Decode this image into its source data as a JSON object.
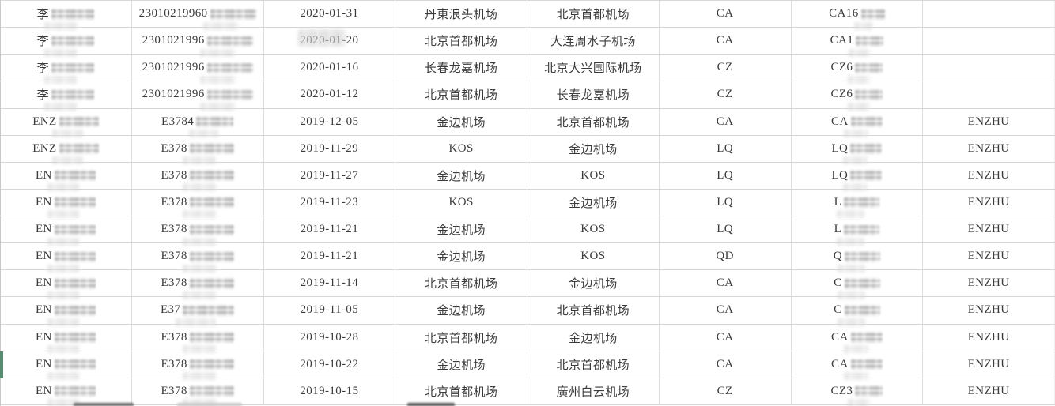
{
  "app": {
    "description_label": "flight-records-spreadsheet"
  },
  "colors": {
    "text": "#3b3b3b",
    "grid_line_horizontal": "#d6d6d6",
    "grid_line_vertical": "#dddddd",
    "row_marker_green": "#578c70",
    "background": "#ffffff"
  },
  "table": {
    "column_keys": [
      "name",
      "id",
      "date",
      "from",
      "to",
      "airline",
      "flight",
      "tag"
    ],
    "selected_row_index": 14,
    "partial_row_visible_at_bottom": true,
    "rows": [
      {
        "name": "李",
        "name_redacted": true,
        "id": "23010219960",
        "id_redacted": true,
        "date": "2020-01-31",
        "from": "丹東浪头机场",
        "to": "北京首都机场",
        "airline": "CA",
        "flight": "CA16",
        "flight_redacted": true,
        "tag": ""
      },
      {
        "name": "李",
        "name_redacted": true,
        "id": "2301021996",
        "id_redacted": true,
        "date": "2020-01-20",
        "from": "北京首都机场",
        "to": "大连周水子机场",
        "airline": "CA",
        "flight": "CA1",
        "flight_redacted": true,
        "tag": ""
      },
      {
        "name": "李",
        "name_redacted": true,
        "id": "2301021996",
        "id_redacted": true,
        "date": "2020-01-16",
        "from": "长春龙嘉机场",
        "to": "北京大兴国际机场",
        "airline": "CZ",
        "flight": "CZ6",
        "flight_redacted": true,
        "tag": ""
      },
      {
        "name": "李",
        "name_redacted": true,
        "id": "2301021996",
        "id_redacted": true,
        "date": "2020-01-12",
        "from": "北京首都机场",
        "to": "长春龙嘉机场",
        "airline": "CZ",
        "flight": "CZ6",
        "flight_redacted": true,
        "tag": ""
      },
      {
        "name": "ENZ",
        "name_redacted": true,
        "id": "E3784",
        "id_redacted": true,
        "date": "2019-12-05",
        "from": "金边机场",
        "to": "北京首都机场",
        "airline": "CA",
        "flight": "CA",
        "flight_redacted": true,
        "tag": "ENZHU"
      },
      {
        "name": "ENZ",
        "name_redacted": true,
        "id": "E378",
        "id_redacted": true,
        "date": "2019-11-29",
        "from": "KOS",
        "to": "金边机场",
        "airline": "LQ",
        "flight": "LQ",
        "flight_redacted": true,
        "tag": "ENZHU"
      },
      {
        "name": "EN",
        "name_redacted": true,
        "id": "E378",
        "id_redacted": true,
        "date": "2019-11-27",
        "from": "金边机场",
        "to": "KOS",
        "airline": "LQ",
        "flight": "LQ",
        "flight_redacted": true,
        "tag": "ENZHU"
      },
      {
        "name": "EN",
        "name_redacted": true,
        "id": "E378",
        "id_redacted": true,
        "date": "2019-11-23",
        "from": "KOS",
        "to": "金边机场",
        "airline": "LQ",
        "flight": "L",
        "flight_redacted": true,
        "tag": "ENZHU"
      },
      {
        "name": "EN",
        "name_redacted": true,
        "id": "E378",
        "id_redacted": true,
        "date": "2019-11-21",
        "from": "金边机场",
        "to": "KOS",
        "airline": "LQ",
        "flight": "L",
        "flight_redacted": true,
        "tag": "ENZHU"
      },
      {
        "name": "EN",
        "name_redacted": true,
        "id": "E378",
        "id_redacted": true,
        "date": "2019-11-21",
        "from": "金边机场",
        "to": "KOS",
        "airline": "QD",
        "flight": "Q",
        "flight_redacted": true,
        "tag": "ENZHU"
      },
      {
        "name": "EN",
        "name_redacted": true,
        "id": "E378",
        "id_redacted": true,
        "date": "2019-11-14",
        "from": "北京首都机场",
        "to": "金边机场",
        "airline": "CA",
        "flight": "C",
        "flight_redacted": true,
        "tag": "ENZHU"
      },
      {
        "name": "EN",
        "name_redacted": true,
        "id": "E37",
        "id_redacted": true,
        "date": "2019-11-05",
        "from": "金边机场",
        "to": "北京首都机场",
        "airline": "CA",
        "flight": "C",
        "flight_redacted": true,
        "tag": "ENZHU"
      },
      {
        "name": "EN",
        "name_redacted": true,
        "id": "E378",
        "id_redacted": true,
        "date": "2019-10-28",
        "from": "北京首都机场",
        "to": "金边机场",
        "airline": "CA",
        "flight": "CA",
        "flight_redacted": true,
        "tag": "ENZHU"
      },
      {
        "name": "EN",
        "name_redacted": true,
        "id": "E378",
        "id_redacted": true,
        "date": "2019-10-22",
        "from": "金边机场",
        "to": "北京首都机场",
        "airline": "CA",
        "flight": "CA",
        "flight_redacted": true,
        "tag": "ENZHU"
      },
      {
        "name": "EN",
        "name_redacted": true,
        "id": "E378",
        "id_redacted": true,
        "date": "2019-10-15",
        "from": "北京首都机场",
        "to": "廣州白云机场",
        "airline": "CZ",
        "flight": "CZ3",
        "flight_redacted": true,
        "tag": "ENZHU"
      }
    ]
  }
}
